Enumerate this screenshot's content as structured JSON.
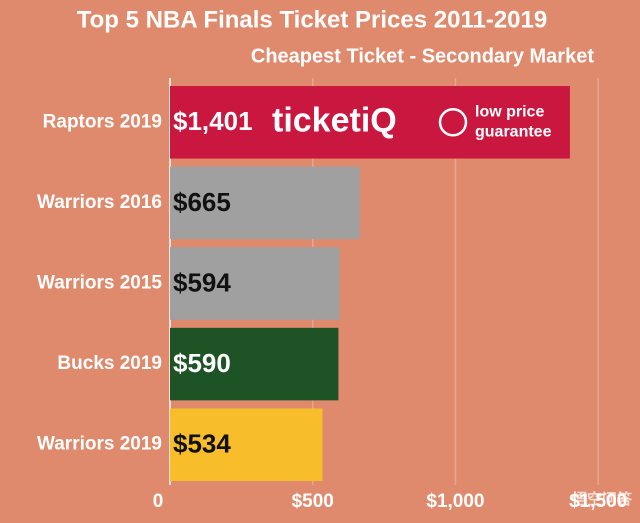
{
  "chart_data": {
    "type": "hbar",
    "title": "Top 5 NBA Finals Ticket Prices 2011-2019",
    "subtitle": "Cheapest Ticket - Secondary Market",
    "categories": [
      "Raptors 2019",
      "Warriors 2016",
      "Warriors 2015",
      "Bucks 2019",
      "Warriors 2019"
    ],
    "values": [
      1401,
      665,
      594,
      590,
      534
    ],
    "value_labels": [
      "$1,401",
      "$665",
      "$594",
      "$590",
      "$534"
    ],
    "colors": [
      "#c9173f",
      "#a0a0a0",
      "#a0a0a0",
      "#1d5325",
      "#f7bd2b"
    ],
    "value_label_colors": [
      "#ffffff",
      "#111111",
      "#111111",
      "#ffffff",
      "#111111"
    ],
    "xlim": [
      0,
      1650
    ],
    "xticks": [
      0,
      {
        "value": 500,
        "label": "$500"
      },
      {
        "value": 1000,
        "label": "$1,000"
      },
      {
        "value": 1500,
        "label": "$1,500"
      }
    ],
    "grid": true,
    "logo": {
      "brand": "ticketiQ",
      "tagline_1": "low price",
      "tagline_2": "guarantee"
    },
    "watermark": "悟空问答"
  }
}
